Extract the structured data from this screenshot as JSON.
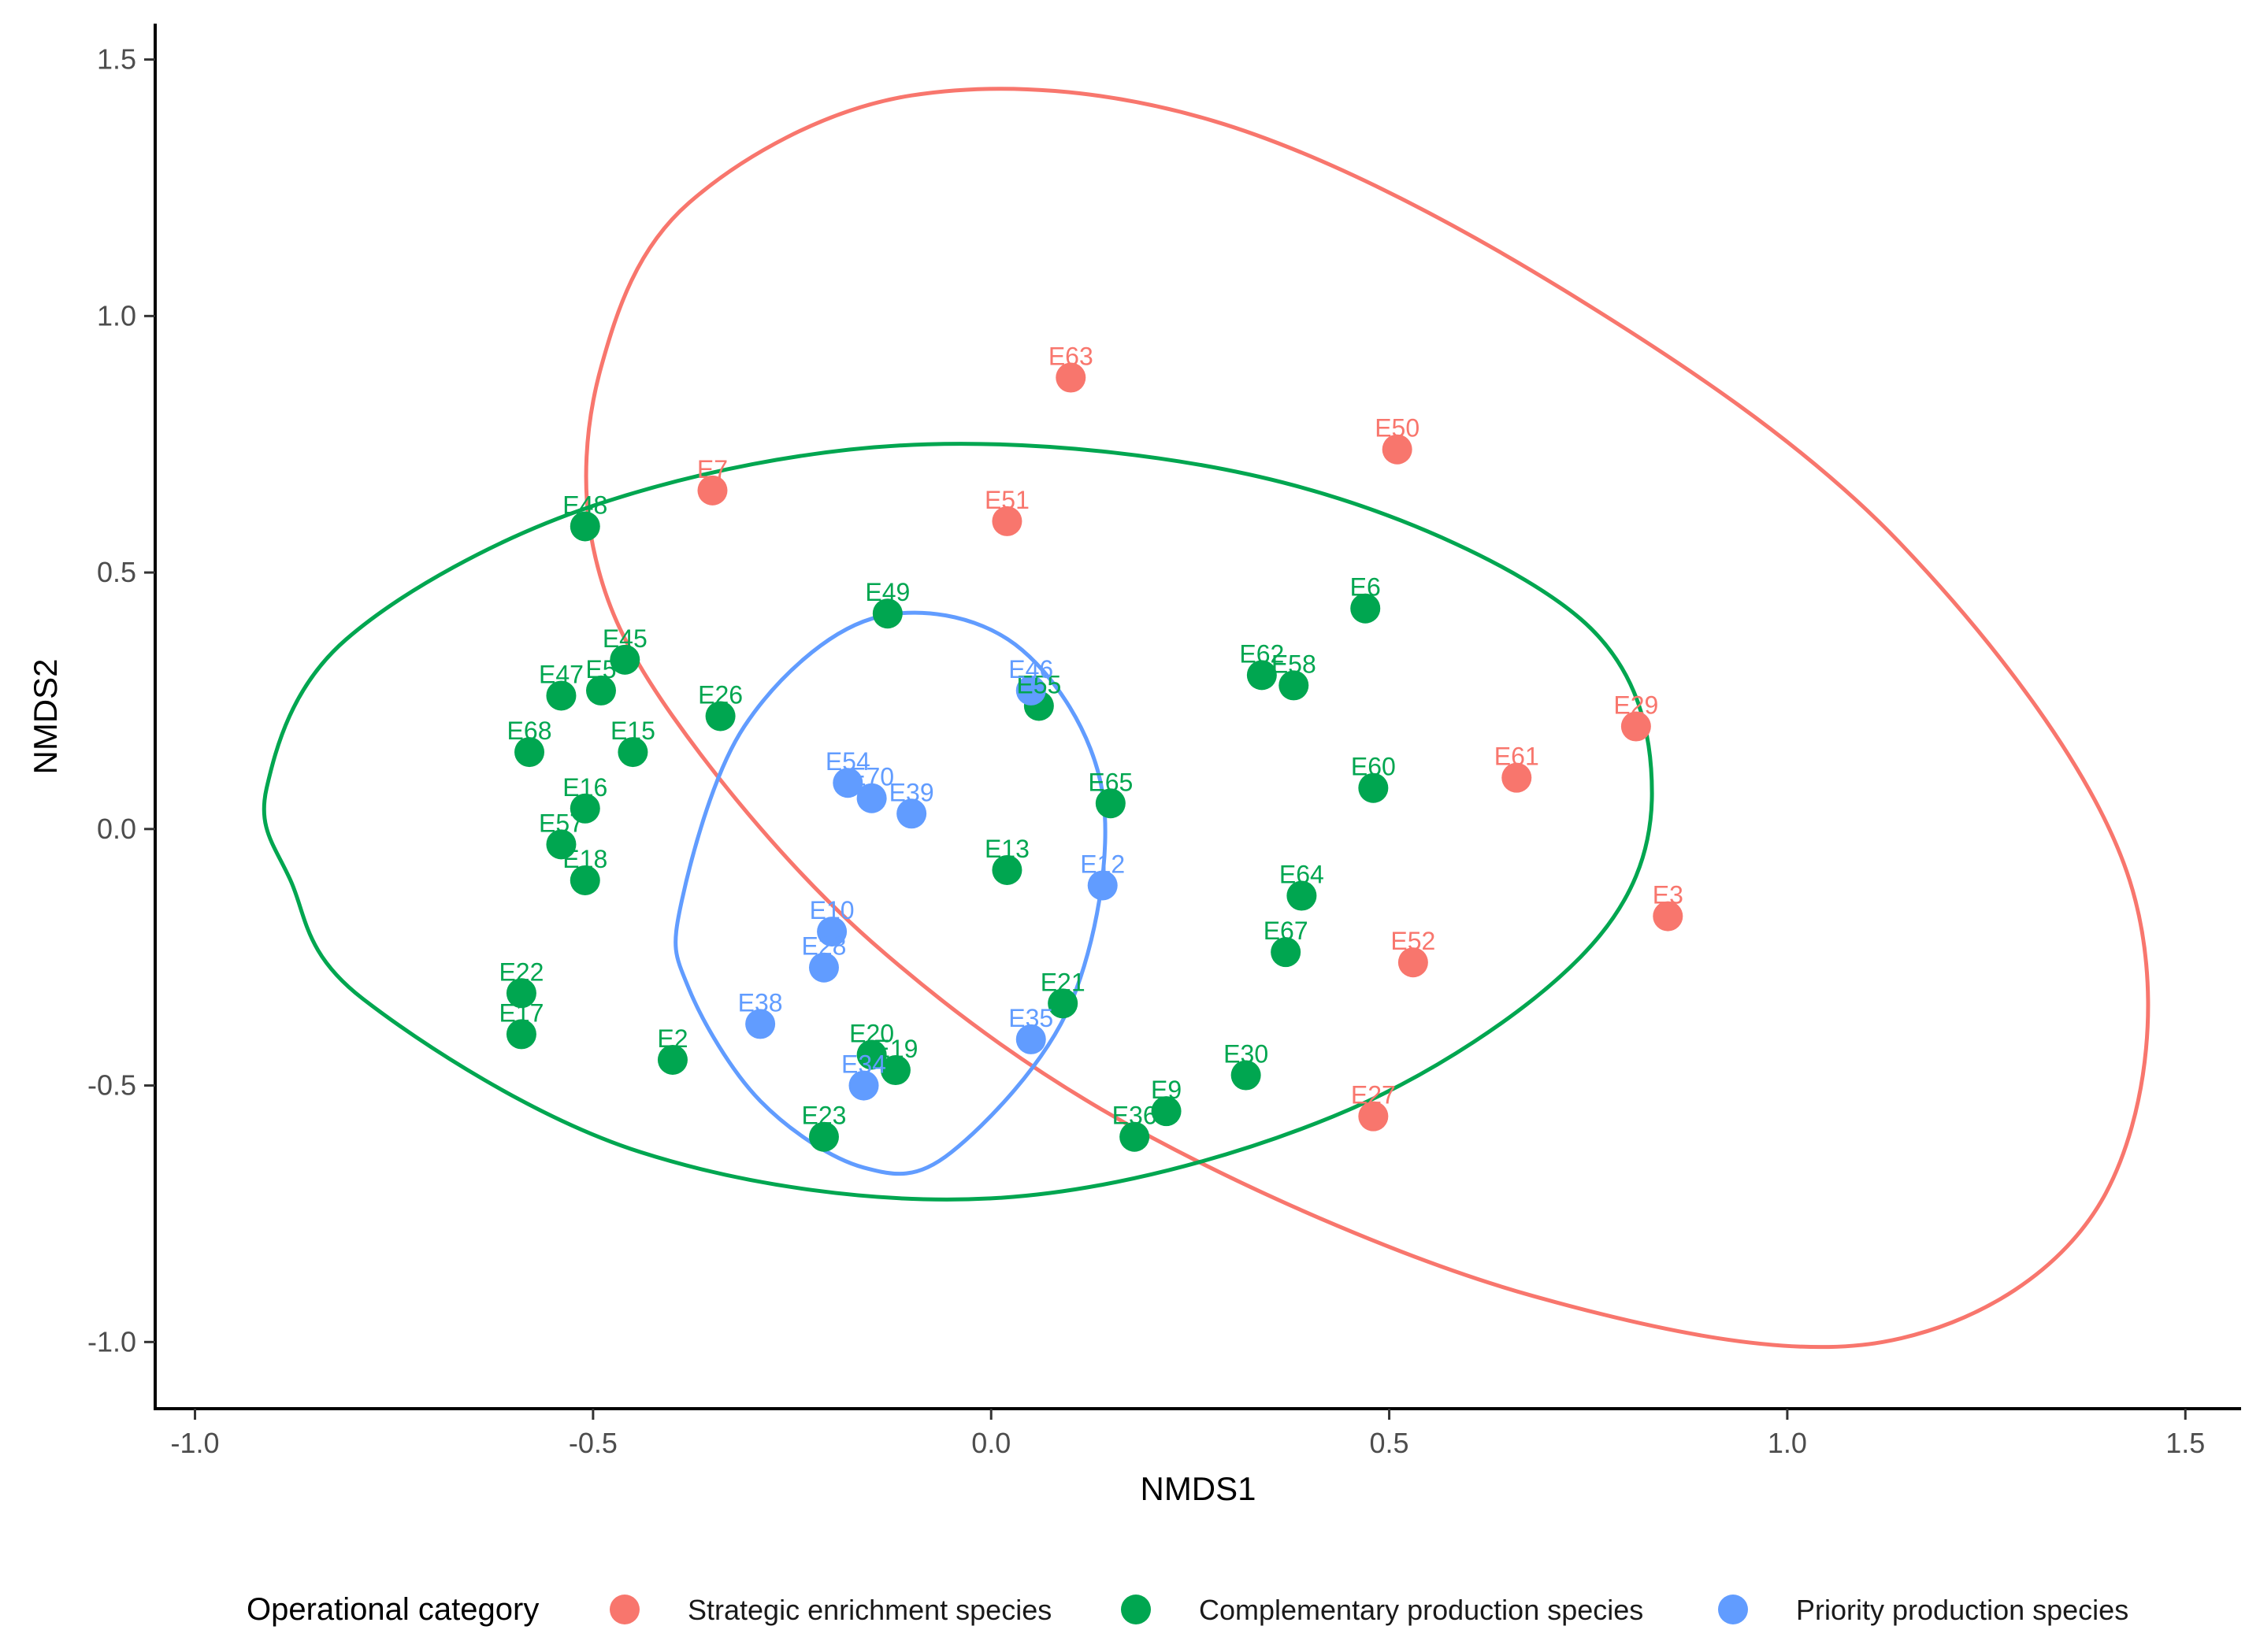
{
  "chart_data": {
    "type": "scatter",
    "title": "",
    "xlabel": "NMDS1",
    "ylabel": "NMDS2",
    "xlim": [
      -1.05,
      1.57
    ],
    "ylim": [
      -1.13,
      1.57
    ],
    "x_ticks": [
      -1.0,
      -0.5,
      0.0,
      0.5,
      1.0,
      1.5
    ],
    "x_tick_labels": [
      "-1.0",
      "-0.5",
      "0.0",
      "0.5",
      "1.0",
      "1.5"
    ],
    "y_ticks": [
      -1.0,
      -0.5,
      0.0,
      0.5,
      1.0,
      1.5
    ],
    "y_tick_labels": [
      "-1.0",
      "-0.5",
      "0.0",
      "0.5",
      "1.0",
      "1.5"
    ],
    "grid": false,
    "legend": {
      "title": "Operational category",
      "position": "bottom"
    },
    "series": [
      {
        "name": "Strategic enrichment species",
        "color": "#F8766D",
        "ellipse": [
          [
            -0.49,
            0.9
          ],
          [
            -0.38,
            1.22
          ],
          [
            -0.1,
            1.43
          ],
          [
            0.28,
            1.38
          ],
          [
            0.72,
            1.05
          ],
          [
            1.14,
            0.56
          ],
          [
            1.43,
            -0.1
          ],
          [
            1.4,
            -0.71
          ],
          [
            1.12,
            -1.0
          ],
          [
            0.68,
            -0.91
          ],
          [
            0.2,
            -0.6
          ],
          [
            -0.15,
            -0.22
          ],
          [
            -0.4,
            0.22
          ],
          [
            -0.5,
            0.55
          ]
        ],
        "points": [
          {
            "label": "E63",
            "x": 0.1,
            "y": 0.88
          },
          {
            "label": "E50",
            "x": 0.51,
            "y": 0.74
          },
          {
            "label": "E7",
            "x": -0.35,
            "y": 0.66
          },
          {
            "label": "E51",
            "x": 0.02,
            "y": 0.6
          },
          {
            "label": "E29",
            "x": 0.81,
            "y": 0.2
          },
          {
            "label": "E61",
            "x": 0.66,
            "y": 0.1
          },
          {
            "label": "E3",
            "x": 0.85,
            "y": -0.17
          },
          {
            "label": "E52",
            "x": 0.53,
            "y": -0.26
          },
          {
            "label": "E27",
            "x": 0.48,
            "y": -0.56
          }
        ]
      },
      {
        "name": "Complementary production species",
        "color": "#00A650",
        "ellipse": [
          [
            -0.91,
            0.08
          ],
          [
            -0.81,
            0.37
          ],
          [
            -0.5,
            0.63
          ],
          [
            -0.08,
            0.75
          ],
          [
            0.38,
            0.67
          ],
          [
            0.74,
            0.41
          ],
          [
            0.83,
            0.07
          ],
          [
            0.74,
            -0.25
          ],
          [
            0.43,
            -0.56
          ],
          [
            0.0,
            -0.72
          ],
          [
            -0.44,
            -0.63
          ],
          [
            -0.79,
            -0.33
          ],
          [
            -0.88,
            -0.1
          ]
        ],
        "points": [
          {
            "label": "E48",
            "x": -0.51,
            "y": 0.59
          },
          {
            "label": "E49",
            "x": -0.13,
            "y": 0.42
          },
          {
            "label": "E6",
            "x": 0.47,
            "y": 0.43
          },
          {
            "label": "E45",
            "x": -0.46,
            "y": 0.33
          },
          {
            "label": "E47",
            "x": -0.54,
            "y": 0.26
          },
          {
            "label": "E5",
            "x": -0.49,
            "y": 0.27
          },
          {
            "label": "E62",
            "x": 0.34,
            "y": 0.3
          },
          {
            "label": "E58",
            "x": 0.38,
            "y": 0.28
          },
          {
            "label": "E26",
            "x": -0.34,
            "y": 0.22
          },
          {
            "label": "E55",
            "x": 0.06,
            "y": 0.24
          },
          {
            "label": "E68",
            "x": -0.58,
            "y": 0.15
          },
          {
            "label": "E15",
            "x": -0.45,
            "y": 0.15
          },
          {
            "label": "E16",
            "x": -0.51,
            "y": 0.04
          },
          {
            "label": "E65",
            "x": 0.15,
            "y": 0.05
          },
          {
            "label": "E60",
            "x": 0.48,
            "y": 0.08
          },
          {
            "label": "E57",
            "x": -0.54,
            "y": -0.03
          },
          {
            "label": "E18",
            "x": -0.51,
            "y": -0.1
          },
          {
            "label": "E13",
            "x": 0.02,
            "y": -0.08
          },
          {
            "label": "E64",
            "x": 0.39,
            "y": -0.13
          },
          {
            "label": "E67",
            "x": 0.37,
            "y": -0.24
          },
          {
            "label": "E22",
            "x": -0.59,
            "y": -0.32
          },
          {
            "label": "E21",
            "x": 0.09,
            "y": -0.34
          },
          {
            "label": "E17",
            "x": -0.59,
            "y": -0.4
          },
          {
            "label": "E2",
            "x": -0.4,
            "y": -0.45
          },
          {
            "label": "E20",
            "x": -0.15,
            "y": -0.44
          },
          {
            "label": "E19",
            "x": -0.12,
            "y": -0.47
          },
          {
            "label": "E30",
            "x": 0.32,
            "y": -0.48
          },
          {
            "label": "E9",
            "x": 0.22,
            "y": -0.55
          },
          {
            "label": "E36",
            "x": 0.18,
            "y": -0.6
          },
          {
            "label": "E23",
            "x": -0.21,
            "y": -0.6
          }
        ]
      },
      {
        "name": "Priority production species",
        "color": "#619CFF",
        "ellipse": [
          [
            -0.39,
            -0.15
          ],
          [
            -0.31,
            0.2
          ],
          [
            -0.15,
            0.41
          ],
          [
            0.03,
            0.36
          ],
          [
            0.14,
            0.07
          ],
          [
            0.1,
            -0.34
          ],
          [
            -0.05,
            -0.63
          ],
          [
            -0.16,
            -0.66
          ],
          [
            -0.29,
            -0.53
          ],
          [
            -0.38,
            -0.31
          ]
        ],
        "points": [
          {
            "label": "E46",
            "x": 0.05,
            "y": 0.27
          },
          {
            "label": "E54",
            "x": -0.18,
            "y": 0.09
          },
          {
            "label": "E70",
            "x": -0.15,
            "y": 0.06
          },
          {
            "label": "E39",
            "x": -0.1,
            "y": 0.03
          },
          {
            "label": "E12",
            "x": 0.14,
            "y": -0.11
          },
          {
            "label": "E10",
            "x": -0.2,
            "y": -0.2
          },
          {
            "label": "E28",
            "x": -0.21,
            "y": -0.27
          },
          {
            "label": "E38",
            "x": -0.29,
            "y": -0.38
          },
          {
            "label": "E35",
            "x": 0.05,
            "y": -0.41
          },
          {
            "label": "E34",
            "x": -0.16,
            "y": -0.5
          }
        ]
      }
    ]
  }
}
